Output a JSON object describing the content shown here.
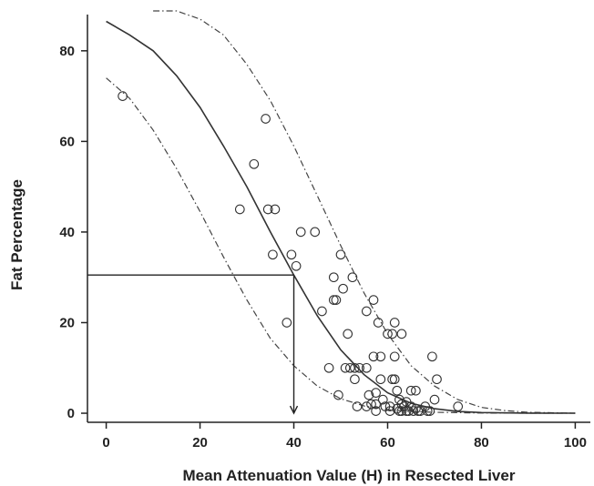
{
  "chart_data": {
    "type": "scatter",
    "title": "",
    "xlabel": "Mean Attenuation Value (H) in Resected Liver",
    "ylabel": "Fat Percentage",
    "xlim": [
      -4,
      104
    ],
    "ylim": [
      -2,
      88
    ],
    "x_ticks": [
      0,
      20,
      40,
      60,
      80,
      100
    ],
    "y_ticks": [
      0,
      20,
      40,
      60,
      80
    ],
    "grid": false,
    "legend": "none",
    "points": [
      [
        3.5,
        70
      ],
      [
        28.5,
        45
      ],
      [
        31.5,
        55
      ],
      [
        34,
        65
      ],
      [
        34.5,
        45
      ],
      [
        35.5,
        35
      ],
      [
        36,
        45
      ],
      [
        38.5,
        20
      ],
      [
        39.5,
        35
      ],
      [
        40.5,
        32.5
      ],
      [
        41.5,
        40
      ],
      [
        44.5,
        40
      ],
      [
        46,
        22.5
      ],
      [
        47.5,
        10
      ],
      [
        48.5,
        30
      ],
      [
        48.5,
        25
      ],
      [
        49,
        25
      ],
      [
        49.5,
        4
      ],
      [
        50,
        35
      ],
      [
        50.5,
        27.5
      ],
      [
        51,
        10
      ],
      [
        51.5,
        17.5
      ],
      [
        52,
        10
      ],
      [
        52.5,
        30
      ],
      [
        53,
        10
      ],
      [
        53,
        7.5
      ],
      [
        53.5,
        1.5
      ],
      [
        54,
        10
      ],
      [
        55.5,
        10
      ],
      [
        55.5,
        22.5
      ],
      [
        55.5,
        1.5
      ],
      [
        56,
        4
      ],
      [
        56.5,
        2
      ],
      [
        57,
        25
      ],
      [
        57,
        12.5
      ],
      [
        57.5,
        0.5
      ],
      [
        57.5,
        2
      ],
      [
        57.5,
        4.5
      ],
      [
        58,
        20
      ],
      [
        58.5,
        12.5
      ],
      [
        58.5,
        7.5
      ],
      [
        59,
        3
      ],
      [
        59.5,
        1.5
      ],
      [
        60,
        17.5
      ],
      [
        60.5,
        0.5
      ],
      [
        60.5,
        1.5
      ],
      [
        61,
        17.5
      ],
      [
        61,
        7.5
      ],
      [
        61.5,
        7.5
      ],
      [
        61.5,
        12.5
      ],
      [
        61.5,
        20
      ],
      [
        62,
        5
      ],
      [
        62,
        1
      ],
      [
        62.5,
        0.5
      ],
      [
        62.5,
        3
      ],
      [
        63,
        17.5
      ],
      [
        63,
        2
      ],
      [
        63,
        0.5
      ],
      [
        63.5,
        1.5
      ],
      [
        64,
        2.5
      ],
      [
        64,
        0.5
      ],
      [
        64.5,
        0.5
      ],
      [
        65,
        5
      ],
      [
        65,
        1.5
      ],
      [
        65.5,
        0.5
      ],
      [
        66,
        5
      ],
      [
        66,
        1
      ],
      [
        66.5,
        0.5
      ],
      [
        67,
        0.5
      ],
      [
        68,
        1.5
      ],
      [
        68.5,
        0.5
      ],
      [
        69,
        0.5
      ],
      [
        69.5,
        12.5
      ],
      [
        70,
        3
      ],
      [
        70.5,
        7.5
      ],
      [
        75,
        1.5
      ]
    ],
    "fit_curve": {
      "name": "",
      "style": "solid",
      "x": [
        0,
        5,
        10,
        15,
        20,
        25,
        30,
        35,
        40,
        45,
        50,
        55,
        60,
        65,
        70,
        75,
        80,
        90,
        100
      ],
      "y": [
        86.5,
        83.5,
        80,
        74.5,
        67.5,
        59,
        50,
        40,
        30.5,
        21.5,
        14,
        8.5,
        4.5,
        2.2,
        1,
        0.4,
        0.15,
        0.02,
        0
      ]
    },
    "upper_band": {
      "name": "",
      "style": "dash-dot",
      "x": [
        10,
        15,
        20,
        25,
        30,
        35,
        40,
        45,
        50,
        55,
        60,
        65,
        70,
        75,
        80,
        85,
        90,
        100
      ],
      "y": [
        91,
        90,
        87,
        83.5,
        77,
        69,
        59,
        48,
        37,
        26.5,
        17.5,
        10.5,
        6,
        3,
        1.3,
        0.6,
        0.2,
        0
      ]
    },
    "lower_band": {
      "name": "",
      "style": "dash-dot",
      "x": [
        0,
        5,
        10,
        15,
        20,
        25,
        30,
        35,
        40,
        45,
        50,
        55,
        60,
        65,
        70,
        80,
        90,
        100
      ],
      "y": [
        74,
        69.5,
        62.5,
        54,
        44.5,
        34.5,
        25,
        16.5,
        10.5,
        6,
        3.2,
        1.6,
        0.8,
        0.4,
        0.2,
        0.05,
        0,
        0
      ]
    },
    "reference_line": {
      "y": 30.5,
      "x": 40,
      "arrow_to_y": 0
    }
  }
}
